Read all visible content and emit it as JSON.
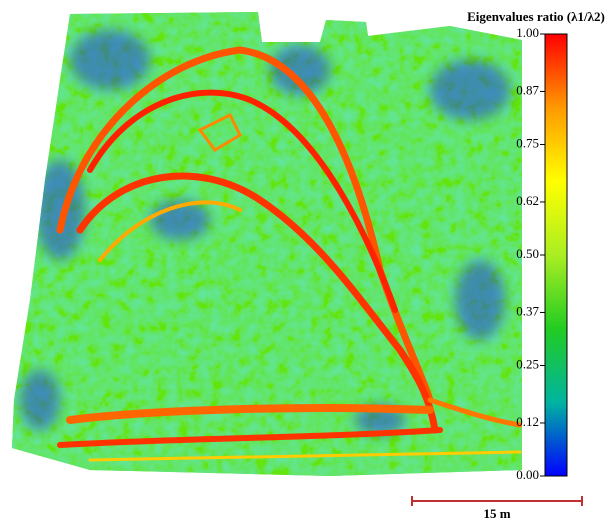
{
  "colorbar": {
    "title": "Eigenvalues ratio (λ1/λ2)",
    "lim": [
      0,
      1
    ],
    "colors": [
      "#0000ff",
      "#00b4a0",
      "#22cc22",
      "#aaee22",
      "#ffff00",
      "#ff9900",
      "#ff0000"
    ],
    "ticks": [
      {
        "value": 0,
        "label": "0.00"
      },
      {
        "value": 0.12,
        "label": "0.12"
      },
      {
        "value": 0.25,
        "label": "0.25"
      },
      {
        "value": 0.37,
        "label": "0.37"
      },
      {
        "value": 0.5,
        "label": "0.50"
      },
      {
        "value": 0.62,
        "label": "0.62"
      },
      {
        "value": 0.75,
        "label": "0.75"
      },
      {
        "value": 0.87,
        "label": "0.87"
      },
      {
        "value": 1,
        "label": "1.00"
      }
    ]
  },
  "scale_bar": {
    "label": "15 m"
  }
}
